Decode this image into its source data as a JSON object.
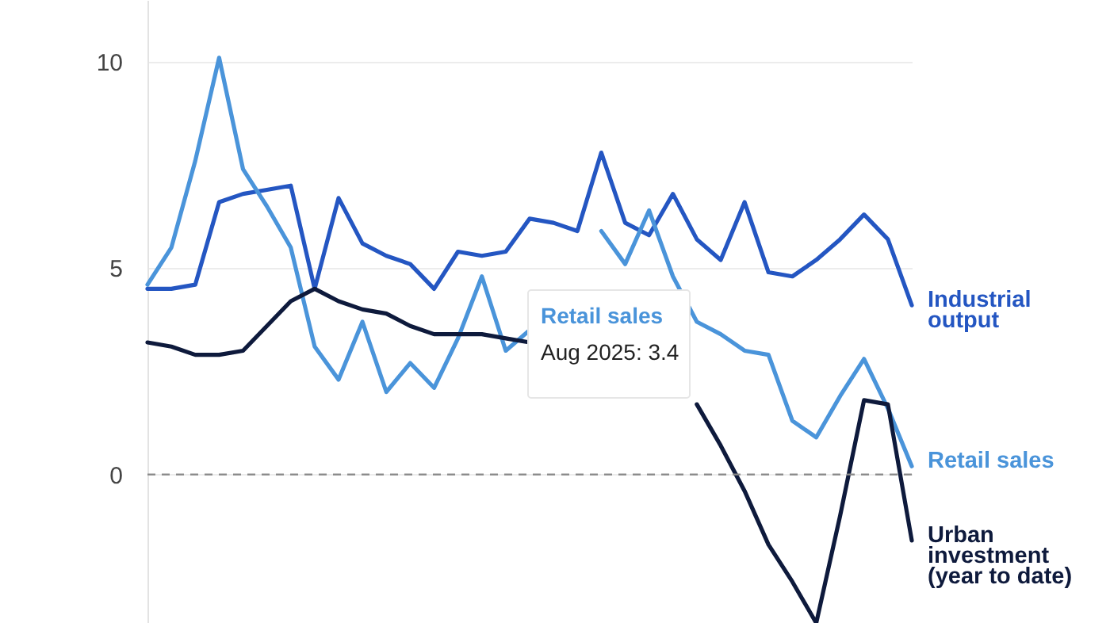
{
  "chart_data": {
    "type": "line",
    "categories": [
      null,
      null,
      null,
      null,
      null,
      null,
      null,
      null,
      null,
      null,
      null,
      null,
      null,
      null,
      null,
      null,
      null,
      null,
      null,
      null,
      null,
      null,
      null,
      null,
      null,
      null,
      null,
      null,
      null,
      null,
      null,
      null,
      null
    ],
    "series": [
      {
        "name": "Industrial\noutput",
        "color": "#2456c2",
        "values": [
          4.5,
          4.5,
          4.6,
          6.6,
          6.8,
          6.9,
          7.0,
          4.5,
          6.7,
          5.6,
          5.3,
          5.1,
          4.5,
          5.4,
          5.3,
          5.4,
          6.2,
          6.1,
          5.9,
          7.8,
          6.1,
          5.8,
          6.8,
          5.7,
          5.2,
          6.6,
          4.9,
          4.8,
          5.2,
          5.7,
          6.3,
          5.7,
          4.1
        ]
      },
      {
        "name": "Retail sales",
        "color": "#4a94da",
        "values": [
          4.6,
          5.5,
          7.6,
          10.1,
          7.4,
          6.5,
          5.5,
          3.1,
          2.3,
          3.7,
          2.0,
          2.7,
          2.1,
          3.3,
          4.8,
          3.0,
          3.5,
          null,
          null,
          5.9,
          5.1,
          6.4,
          4.8,
          3.7,
          3.4,
          3.0,
          2.9,
          1.3,
          0.9,
          1.9,
          2.8,
          1.6,
          0.2
        ]
      },
      {
        "name": "Urban\ninvestment\n(year to date)",
        "color": "#0e1a3c",
        "values": [
          3.2,
          3.1,
          2.9,
          2.9,
          3.0,
          3.6,
          4.2,
          4.5,
          4.2,
          4.0,
          3.9,
          3.6,
          3.4,
          3.4,
          3.4,
          3.3,
          3.2,
          null,
          null,
          null,
          null,
          null,
          null,
          1.7,
          0.7,
          -0.4,
          -1.7,
          -2.6,
          -3.6,
          -1.0,
          1.8,
          1.7,
          -1.6
        ]
      }
    ],
    "ylim": [
      -3.6,
      11.5
    ],
    "yticks": [
      0,
      5,
      10
    ],
    "grid": "y",
    "legend": false,
    "ref_lines": [
      {
        "axis": "y",
        "value": 0,
        "color": "#888888",
        "line_style": "dashed"
      }
    ],
    "annotations": [
      "Retail sales",
      "Aug 2025: 3.4"
    ]
  }
}
